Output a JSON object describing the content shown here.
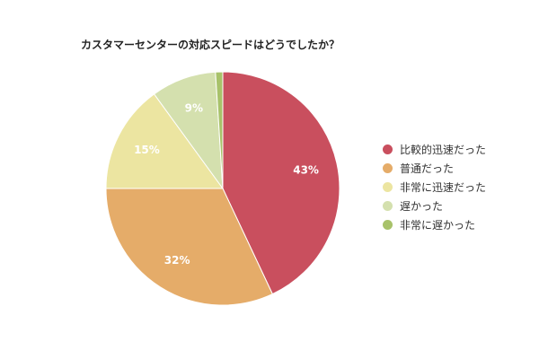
{
  "chart_data": {
    "type": "pie",
    "title": "カスタマーセンターの対応スピードはどうでしたか？",
    "categories": [
      "比較的迅速だった",
      "普通だった",
      "非常に迅速だった",
      "遅かった",
      "非常に遅かった"
    ],
    "values": [
      43,
      32,
      15,
      9,
      1
    ],
    "labels": [
      "43%",
      "32%",
      "15%",
      "9%",
      ""
    ],
    "colors": [
      "#c94f5e",
      "#e5ac69",
      "#ece5a1",
      "#d4e0ae",
      "#a8c26a"
    ],
    "legend": "right"
  }
}
